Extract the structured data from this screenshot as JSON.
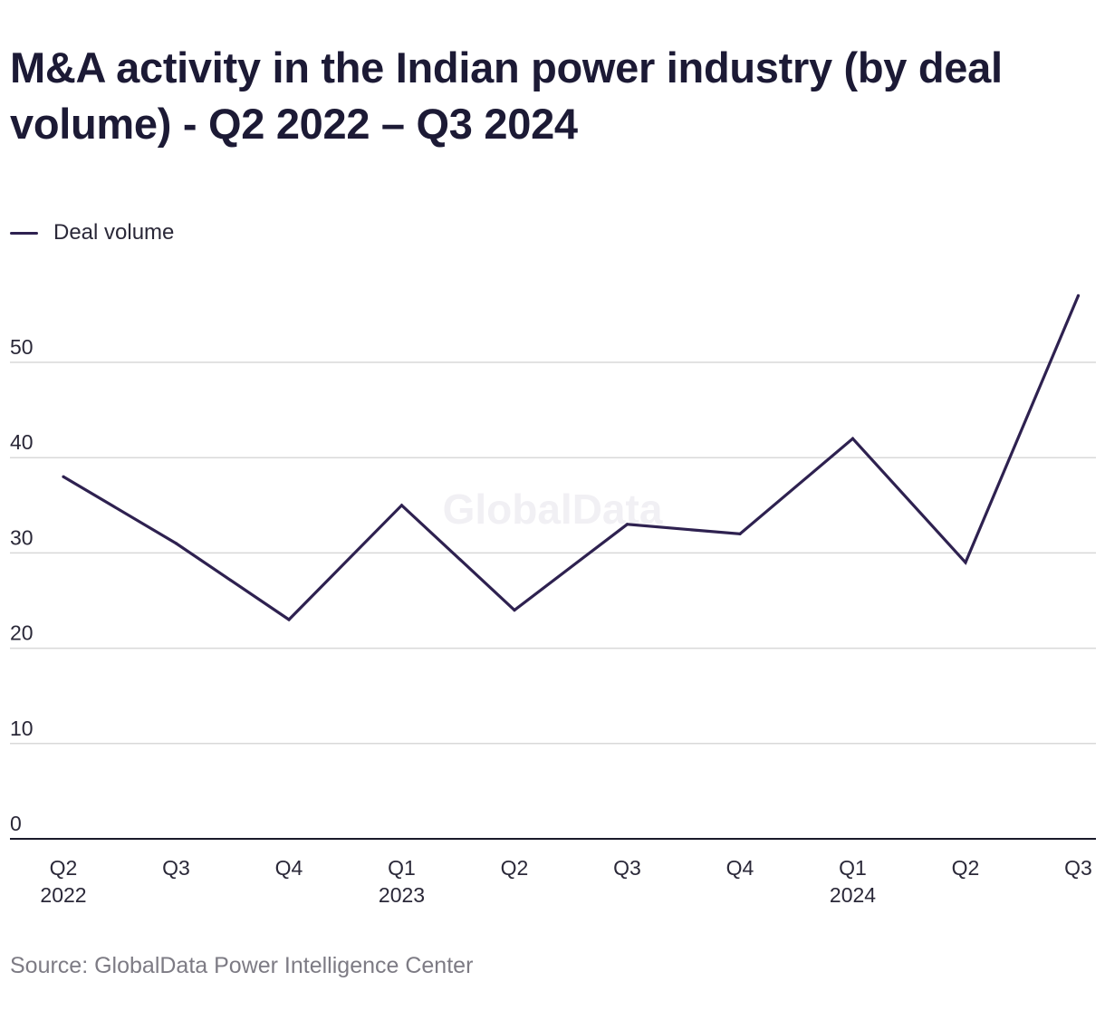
{
  "header": {
    "title": "M&A activity in the Indian power industry (by deal volume) - Q2 2022 – Q3 2024"
  },
  "watermark": "GlobalData",
  "source": "Source: GlobalData Power Intelligence Center",
  "colors": {
    "line": "#2e2150",
    "grid": "#d9d9d9",
    "axis": "#1a1a2a",
    "tick_text": "#2a2838"
  },
  "chart_data": {
    "type": "line",
    "title": "M&A activity in the Indian power industry (by deal volume) - Q2 2022 – Q3 2024",
    "xlabel": "",
    "ylabel": "",
    "categories": [
      "Q2 2022",
      "Q3 2022",
      "Q4 2022",
      "Q1 2023",
      "Q2 2023",
      "Q3 2023",
      "Q4 2023",
      "Q1 2024",
      "Q2 2024",
      "Q3 2024"
    ],
    "x_tick_labels": [
      [
        "Q2",
        "2022"
      ],
      [
        "Q3"
      ],
      [
        "Q4"
      ],
      [
        "Q1",
        "2023"
      ],
      [
        "Q2"
      ],
      [
        "Q3"
      ],
      [
        "Q4"
      ],
      [
        "Q1",
        "2024"
      ],
      [
        "Q2"
      ],
      [
        "Q3"
      ]
    ],
    "series": [
      {
        "name": "Deal volume",
        "values": [
          38,
          31,
          23,
          35,
          24,
          33,
          32,
          42,
          29,
          57
        ]
      }
    ],
    "ylim": [
      0,
      60
    ],
    "yticks": [
      0,
      10,
      20,
      30,
      40,
      50
    ],
    "grid": true,
    "legend_position": "top-left"
  }
}
